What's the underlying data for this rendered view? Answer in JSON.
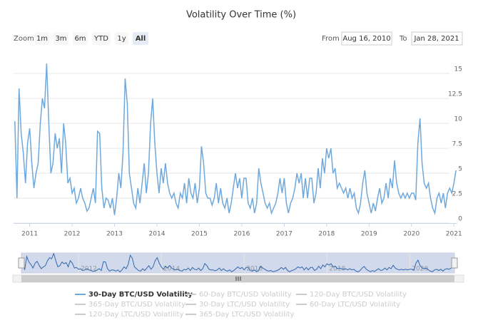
{
  "chart_data": {
    "type": "line",
    "title": "Volatility Over Time (%)",
    "zoom_label": "Zoom",
    "zoom_buttons": [
      "1m",
      "3m",
      "6m",
      "YTD",
      "1y",
      "All"
    ],
    "selected_zoom": "All",
    "range_from_label": "From",
    "range_from": "Aug 16, 2010",
    "range_to_label": "To",
    "range_to": "Jan 28, 2021",
    "xlim": [
      2010.62,
      2021.08
    ],
    "xticks": [
      2011,
      2012,
      2013,
      2014,
      2015,
      2016,
      2017,
      2018,
      2019,
      2020,
      2021
    ],
    "ylim": [
      0,
      16.3
    ],
    "yticks": [
      0,
      2.5,
      5,
      7.5,
      10,
      12.5,
      15
    ],
    "grid": true,
    "navigator_xticks": [
      2012,
      2014,
      2016,
      2018,
      2020
    ],
    "x": [
      2010.65,
      2010.7,
      2010.75,
      2010.8,
      2010.85,
      2010.9,
      2010.95,
      2011,
      2011.05,
      2011.1,
      2011.15,
      2011.2,
      2011.25,
      2011.3,
      2011.35,
      2011.4,
      2011.45,
      2011.5,
      2011.55,
      2011.6,
      2011.65,
      2011.7,
      2011.75,
      2011.8,
      2011.85,
      2011.9,
      2011.95,
      2012,
      2012.05,
      2012.1,
      2012.15,
      2012.2,
      2012.25,
      2012.3,
      2012.35,
      2012.4,
      2012.45,
      2012.5,
      2012.55,
      2012.6,
      2012.65,
      2012.7,
      2012.75,
      2012.8,
      2012.85,
      2012.9,
      2012.95,
      2013,
      2013.05,
      2013.1,
      2013.15,
      2013.2,
      2013.25,
      2013.3,
      2013.35,
      2013.4,
      2013.45,
      2013.5,
      2013.55,
      2013.6,
      2013.65,
      2013.7,
      2013.75,
      2013.8,
      2013.85,
      2013.9,
      2013.95,
      2014,
      2014.05,
      2014.1,
      2014.15,
      2014.2,
      2014.25,
      2014.3,
      2014.35,
      2014.4,
      2014.45,
      2014.5,
      2014.55,
      2014.6,
      2014.65,
      2014.7,
      2014.75,
      2014.8,
      2014.85,
      2014.9,
      2014.95,
      2015,
      2015.05,
      2015.1,
      2015.15,
      2015.2,
      2015.25,
      2015.3,
      2015.35,
      2015.4,
      2015.45,
      2015.5,
      2015.55,
      2015.6,
      2015.65,
      2015.7,
      2015.75,
      2015.8,
      2015.85,
      2015.9,
      2015.95,
      2016,
      2016.05,
      2016.1,
      2016.15,
      2016.2,
      2016.25,
      2016.3,
      2016.35,
      2016.4,
      2016.45,
      2016.5,
      2016.55,
      2016.6,
      2016.65,
      2016.7,
      2016.75,
      2016.8,
      2016.85,
      2016.9,
      2016.95,
      2017,
      2017.05,
      2017.1,
      2017.15,
      2017.2,
      2017.25,
      2017.3,
      2017.35,
      2017.4,
      2017.45,
      2017.5,
      2017.55,
      2017.6,
      2017.65,
      2017.7,
      2017.75,
      2017.8,
      2017.85,
      2017.9,
      2017.95,
      2018,
      2018.05,
      2018.1,
      2018.15,
      2018.2,
      2018.25,
      2018.3,
      2018.35,
      2018.4,
      2018.45,
      2018.5,
      2018.55,
      2018.6,
      2018.65,
      2018.7,
      2018.75,
      2018.8,
      2018.85,
      2018.9,
      2018.95,
      2019,
      2019.05,
      2019.1,
      2019.15,
      2019.2,
      2019.25,
      2019.3,
      2019.35,
      2019.4,
      2019.45,
      2019.5,
      2019.55,
      2019.6,
      2019.65,
      2019.7,
      2019.75,
      2019.8,
      2019.85,
      2019.9,
      2019.95,
      2020,
      2020.05,
      2020.1,
      2020.15,
      2020.2,
      2020.25,
      2020.3,
      2020.35,
      2020.4,
      2020.45,
      2020.5,
      2020.55,
      2020.6,
      2020.65,
      2020.7,
      2020.75,
      2020.8,
      2020.85,
      2020.9,
      2020.95,
      2021,
      2021.05
    ],
    "series": [
      {
        "name": "30-Day BTC/USD Volatility",
        "color": "#6fa8dc",
        "values": [
          10.2,
          2.5,
          13.5,
          9,
          7,
          4,
          8,
          9.5,
          6,
          3.5,
          5,
          6,
          10,
          12.5,
          11.5,
          16,
          10,
          5,
          6,
          9,
          7.5,
          8.5,
          5,
          10,
          8,
          4,
          4.5,
          3,
          3.5,
          2,
          2.5,
          3.5,
          2.5,
          2,
          1.2,
          1.5,
          2.5,
          3.5,
          2,
          9.2,
          9,
          3.5,
          1.5,
          2.5,
          2.3,
          1.5,
          2.5,
          0.8,
          2.5,
          5,
          3.5,
          7,
          14.5,
          12,
          5,
          3.5,
          2,
          1.5,
          3.5,
          2,
          4,
          6,
          3,
          5,
          10,
          12.5,
          8,
          5,
          3,
          5.5,
          4,
          6,
          4,
          3,
          2.5,
          3,
          2,
          1.5,
          3,
          2.5,
          4,
          2,
          4.5,
          3,
          2.5,
          4,
          2,
          3.5,
          7.7,
          6,
          3,
          2.5,
          2.5,
          1.8,
          2.5,
          4,
          2,
          3.5,
          2,
          1.5,
          2.5,
          1,
          2,
          3.5,
          5,
          3.5,
          4.5,
          2.5,
          4.5,
          4.5,
          2,
          1.5,
          2.5,
          1,
          2,
          5.5,
          4,
          3,
          2,
          1.5,
          2,
          1,
          1.5,
          2,
          3,
          4.5,
          3,
          4.5,
          2,
          1,
          2,
          2.5,
          3.5,
          5,
          4,
          5,
          2.5,
          4.5,
          2.5,
          4.5,
          4.5,
          2,
          3,
          5.5,
          3.5,
          6.5,
          5,
          7.5,
          6.5,
          7.5,
          5,
          5.5,
          3.5,
          4,
          3.5,
          3,
          3.5,
          2.5,
          3.5,
          2.5,
          3,
          1.5,
          1,
          2,
          4,
          5.3,
          3,
          2,
          1,
          2,
          1.2,
          2.5,
          3.5,
          2,
          2.5,
          4,
          2.5,
          4.5,
          3.5,
          6.3,
          4,
          3,
          2.5,
          3,
          2.5,
          3,
          2.5,
          3,
          3,
          2.3,
          8,
          10.5,
          6,
          4,
          3.5,
          4,
          2.5,
          1.5,
          1,
          2.5,
          3,
          2,
          3,
          1.5,
          3,
          3.5,
          3,
          4,
          5.3
        ]
      }
    ],
    "hidden_series": [
      "60-Day BTC/USD Volatility",
      "120-Day BTC/USD Volatility",
      "365-Day BTC/USD Volatility",
      "30-Day LTC/USD Volatility",
      "60-Day LTC/USD Volatility",
      "120-Day LTC/USD Volatility",
      "365-Day LTC/USD Volatility"
    ]
  }
}
